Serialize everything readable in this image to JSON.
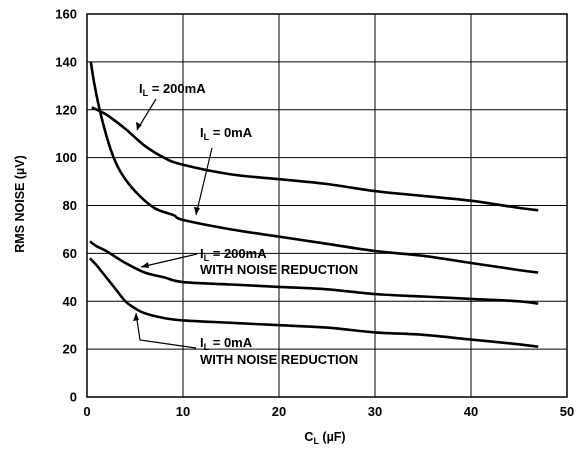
{
  "chart_data": {
    "type": "line",
    "title": "",
    "xlabel": {
      "main": "C",
      "sub": "L",
      "unit": " (µF)"
    },
    "ylabel": "RMS NOISE (µV)",
    "xlim": [
      0,
      50
    ],
    "ylim": [
      0,
      160
    ],
    "x_ticks": [
      "0",
      "10",
      "20",
      "30",
      "40",
      "50"
    ],
    "y_ticks": [
      "0",
      "20",
      "40",
      "60",
      "80",
      "100",
      "120",
      "140",
      "160"
    ],
    "grid": true,
    "series": [
      {
        "name": "I_L = 200mA",
        "points": [
          [
            0.5,
            121
          ],
          [
            2,
            118
          ],
          [
            4,
            112
          ],
          [
            6,
            105
          ],
          [
            8,
            100
          ],
          [
            10,
            97
          ],
          [
            15,
            93
          ],
          [
            20,
            91
          ],
          [
            25,
            89
          ],
          [
            30,
            86
          ],
          [
            35,
            84
          ],
          [
            40,
            82
          ],
          [
            45,
            79
          ],
          [
            47,
            78
          ]
        ]
      },
      {
        "name": "I_L = 0mA",
        "points": [
          [
            0.4,
            140
          ],
          [
            0.8,
            130
          ],
          [
            1.5,
            117
          ],
          [
            2.5,
            103
          ],
          [
            3.5,
            94
          ],
          [
            5,
            86
          ],
          [
            7,
            79
          ],
          [
            9,
            76
          ],
          [
            10,
            74
          ],
          [
            15,
            70
          ],
          [
            20,
            67
          ],
          [
            25,
            64
          ],
          [
            30,
            61
          ],
          [
            35,
            59
          ],
          [
            40,
            56
          ],
          [
            45,
            53
          ],
          [
            47,
            52
          ]
        ]
      },
      {
        "name": "I_L = 200mA WITH NOISE REDUCTION",
        "points": [
          [
            0.3,
            65
          ],
          [
            1,
            63
          ],
          [
            2,
            61
          ],
          [
            4,
            56
          ],
          [
            6,
            52
          ],
          [
            8,
            50
          ],
          [
            10,
            48
          ],
          [
            15,
            47
          ],
          [
            20,
            46
          ],
          [
            25,
            45
          ],
          [
            30,
            43
          ],
          [
            35,
            42
          ],
          [
            40,
            41
          ],
          [
            45,
            40
          ],
          [
            47,
            39
          ]
        ]
      },
      {
        "name": "I_L = 0mA WITH NOISE REDUCTION",
        "points": [
          [
            0.3,
            58
          ],
          [
            1,
            55
          ],
          [
            2,
            50
          ],
          [
            3,
            45
          ],
          [
            4,
            40
          ],
          [
            5,
            37
          ],
          [
            6,
            35
          ],
          [
            8,
            33
          ],
          [
            10,
            32
          ],
          [
            15,
            31
          ],
          [
            20,
            30
          ],
          [
            25,
            29
          ],
          [
            30,
            27
          ],
          [
            35,
            26
          ],
          [
            40,
            24
          ],
          [
            45,
            22
          ],
          [
            47,
            21
          ]
        ]
      }
    ],
    "annotations": [
      {
        "main": "I",
        "sub": "L",
        "rest": " = 200mA",
        "line2": ""
      },
      {
        "main": "I",
        "sub": "L",
        "rest": " = 0mA",
        "line2": ""
      },
      {
        "main": "I",
        "sub": "L",
        "rest": " = 200mA",
        "line2": "WITH NOISE REDUCTION"
      },
      {
        "main": "I",
        "sub": "L",
        "rest": " = 0mA",
        "line2": "WITH NOISE REDUCTION"
      }
    ]
  }
}
